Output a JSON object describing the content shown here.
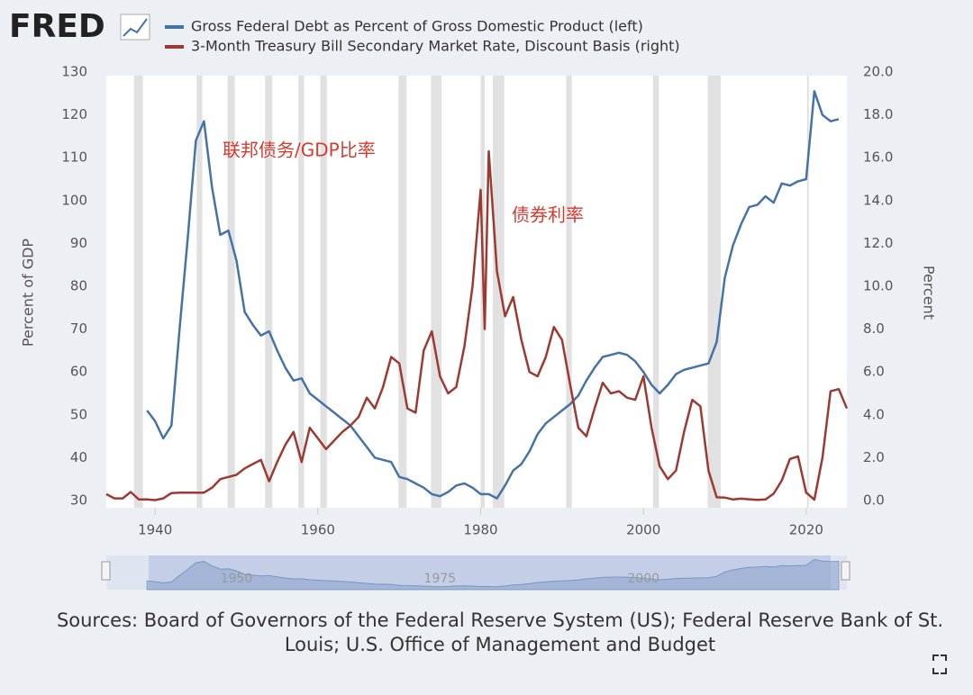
{
  "chart_data": {
    "type": "line",
    "logo": "FRED",
    "xlim": [
      1934,
      2025
    ],
    "xticks": [
      1940,
      1960,
      1980,
      2000,
      2020
    ],
    "ylim": [
      30,
      130
    ],
    "yticks": [
      30,
      40,
      50,
      60,
      70,
      80,
      90,
      100,
      110,
      120,
      130
    ],
    "y2lim": [
      0,
      20
    ],
    "y2ticks": [
      {
        "value": 0,
        "label": "0.0"
      },
      {
        "value": 2,
        "label": "2.0"
      },
      {
        "value": 4,
        "label": "4.0"
      },
      {
        "value": 6,
        "label": "6.0"
      },
      {
        "value": 8,
        "label": "8.0"
      },
      {
        "value": 10,
        "label": "10.0"
      },
      {
        "value": 12,
        "label": "12.0"
      },
      {
        "value": 14,
        "label": "14.0"
      },
      {
        "value": 16,
        "label": "16.0"
      },
      {
        "value": 18,
        "label": "18.0"
      },
      {
        "value": 20,
        "label": "20.0"
      }
    ],
    "ylabel": "Percent of GDP",
    "y2label": "Percent",
    "grid": false,
    "recessions": [
      [
        1937.4,
        1938.5
      ],
      [
        1945.1,
        1945.8
      ],
      [
        1948.9,
        1949.8
      ],
      [
        1953.5,
        1954.4
      ],
      [
        1957.6,
        1958.3
      ],
      [
        1960.3,
        1961.1
      ],
      [
        1969.9,
        1970.9
      ],
      [
        1973.9,
        1975.2
      ],
      [
        1980.0,
        1980.5
      ],
      [
        1981.5,
        1982.9
      ],
      [
        1990.5,
        1991.2
      ],
      [
        2001.2,
        2001.9
      ],
      [
        2007.9,
        2009.5
      ],
      [
        2020.1,
        2020.3
      ]
    ],
    "series": [
      {
        "name": "Gross Federal Debt as Percent of Gross Domestic Product (left)",
        "color": "#4572a7",
        "axis": "y",
        "x": [
          1939,
          1940,
          1941,
          1942,
          1943,
          1944,
          1945,
          1946,
          1947,
          1948,
          1949,
          1950,
          1951,
          1952,
          1953,
          1954,
          1955,
          1956,
          1957,
          1958,
          1959,
          1960,
          1961,
          1962,
          1963,
          1964,
          1965,
          1966,
          1967,
          1968,
          1969,
          1970,
          1971,
          1972,
          1973,
          1974,
          1975,
          1976,
          1977,
          1978,
          1979,
          1980,
          1981,
          1982,
          1983,
          1984,
          1985,
          1986,
          1987,
          1988,
          1989,
          1990,
          1991,
          1992,
          1993,
          1994,
          1995,
          1996,
          1997,
          1998,
          1999,
          2000,
          2001,
          2002,
          2003,
          2004,
          2005,
          2006,
          2007,
          2008,
          2009,
          2010,
          2011,
          2012,
          2013,
          2014,
          2015,
          2016,
          2017,
          2018,
          2019,
          2020,
          2021,
          2022,
          2023,
          2024
        ],
        "values": [
          51,
          48.5,
          44.5,
          47.5,
          70,
          91,
          114,
          118.5,
          103,
          92,
          93,
          86,
          74,
          71,
          68.5,
          69.5,
          65,
          61,
          58,
          58.5,
          55,
          53.5,
          52,
          50.5,
          49,
          47.5,
          45,
          42.5,
          40,
          39.5,
          39,
          35.5,
          35,
          34,
          33,
          31.5,
          31,
          32,
          33.5,
          34,
          33,
          31.5,
          31.5,
          30.5,
          33.5,
          37,
          38.5,
          41.5,
          45.5,
          48,
          49.5,
          51,
          52.5,
          54.5,
          58,
          61,
          63.5,
          64,
          64.5,
          64,
          62.5,
          60,
          57,
          55,
          57,
          59.5,
          60.5,
          61,
          61.5,
          62,
          67,
          82,
          89.5,
          94.5,
          98.5,
          99,
          101,
          99.5,
          104,
          103.5,
          104.5,
          105,
          125.5,
          120,
          118.5,
          119
        ]
      },
      {
        "name": "3-Month Treasury Bill Secondary Market Rate, Discount Basis (right)",
        "color": "#9c3a32",
        "axis": "y2",
        "x": [
          1934,
          1935,
          1936,
          1937,
          1938,
          1939,
          1940,
          1941,
          1942,
          1943,
          1944,
          1945,
          1946,
          1947,
          1948,
          1949,
          1950,
          1951,
          1952,
          1953,
          1954,
          1955,
          1956,
          1957,
          1958,
          1959,
          1960,
          1961,
          1962,
          1963,
          1964,
          1965,
          1966,
          1967,
          1968,
          1969,
          1970,
          1971,
          1972,
          1973,
          1974,
          1975,
          1976,
          1977,
          1978,
          1979,
          1980,
          1980.5,
          1981,
          1981.5,
          1982,
          1983,
          1984,
          1985,
          1986,
          1987,
          1988,
          1989,
          1990,
          1991,
          1992,
          1993,
          1994,
          1995,
          1996,
          1997,
          1998,
          1999,
          2000,
          2001,
          2002,
          2003,
          2004,
          2005,
          2006,
          2007,
          2008,
          2009,
          2010,
          2011,
          2012,
          2013,
          2014,
          2015,
          2016,
          2017,
          2018,
          2019,
          2020,
          2021,
          2022,
          2023,
          2024,
          2025
        ],
        "values": [
          0.3,
          0.1,
          0.1,
          0.4,
          0.05,
          0.05,
          0.02,
          0.1,
          0.35,
          0.37,
          0.37,
          0.37,
          0.37,
          0.6,
          1.0,
          1.1,
          1.2,
          1.5,
          1.7,
          1.9,
          0.9,
          1.8,
          2.6,
          3.2,
          1.8,
          3.4,
          2.9,
          2.4,
          2.8,
          3.2,
          3.5,
          3.9,
          4.8,
          4.3,
          5.3,
          6.7,
          6.4,
          4.3,
          4.1,
          7.0,
          7.9,
          5.8,
          5.0,
          5.3,
          7.2,
          10.0,
          14.5,
          8.0,
          16.3,
          13.5,
          10.7,
          8.6,
          9.5,
          7.5,
          6.0,
          5.8,
          6.7,
          8.1,
          7.5,
          5.4,
          3.4,
          3.0,
          4.3,
          5.5,
          5.0,
          5.1,
          4.8,
          4.7,
          5.8,
          3.4,
          1.6,
          1.0,
          1.4,
          3.2,
          4.7,
          4.4,
          1.4,
          0.15,
          0.14,
          0.05,
          0.09,
          0.06,
          0.03,
          0.05,
          0.32,
          0.93,
          1.94,
          2.06,
          0.37,
          0.04,
          2.0,
          5.1,
          5.2,
          4.3
        ]
      }
    ],
    "annotations": [
      "联邦债务/GDP比率",
      "债券利率"
    ],
    "navigator_ticks": [
      1950,
      1975,
      2000
    ],
    "source": "Sources: Board of Governors of the Federal Reserve System (US); Federal Reserve Bank of St.",
    "source_2": "Louis; U.S. Office of Management and Budget"
  }
}
